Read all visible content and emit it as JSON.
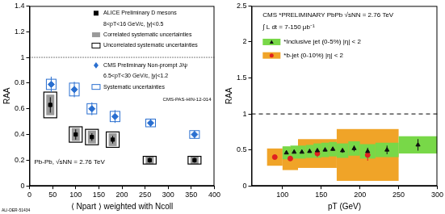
{
  "chart_data": [
    {
      "type": "scatter",
      "y_label": "RAA",
      "x_label": "⟨ Npart ⟩ weighted with Ncoll",
      "xlim": [
        0,
        400
      ],
      "xticks": [
        0,
        50,
        100,
        150,
        200,
        250,
        300,
        350,
        400
      ],
      "ylim": [
        0,
        1.4
      ],
      "yticks": [
        0,
        0.2,
        0.4,
        0.6,
        0.8,
        1,
        1.2,
        1.4
      ],
      "reference_line": {
        "value": 1,
        "line_style": "dotted"
      },
      "annotations": [
        "Pb-Pb, √sNN = 2.76 TeV",
        "CMS-PAS-HIN-12-014",
        "ALI-DER-51434"
      ],
      "series": [
        {
          "name": "ALICE Preliminary D mesons",
          "subtitle": "8<pT<16 GeV/c, |y|<0.5",
          "color": "#000000",
          "marker": "square",
          "x": [
            45,
            100,
            135,
            180,
            260,
            357
          ],
          "values": [
            0.63,
            0.4,
            0.38,
            0.36,
            0.2,
            0.2
          ],
          "errors": [
            0.06,
            0.04,
            0.03,
            0.03,
            0.02,
            0.02
          ],
          "correlated_syst": [
            0.08,
            0.05,
            0.05,
            0.05,
            0.03,
            0.03
          ],
          "correlated_syst_label": "Correlated systematic uncertainties",
          "uncorrelated_syst": [
            0.1,
            0.06,
            0.06,
            0.06,
            0.03,
            0.03
          ],
          "uncorrelated_syst_label": "Uncorrelated systematic uncertainties"
        },
        {
          "name": "CMS Preliminary Non-prompt J/ψ",
          "subtitle": "6.5<pT<30 GeV/c, |y|<1.2",
          "color": "#2a6fd0",
          "marker": "diamond",
          "x": [
            47,
            97,
            135,
            185,
            262,
            357
          ],
          "values": [
            0.79,
            0.75,
            0.6,
            0.54,
            0.49,
            0.4
          ],
          "errors": [
            0.06,
            0.06,
            0.05,
            0.05,
            0.03,
            0.03
          ],
          "syst": [
            0.04,
            0.05,
            0.04,
            0.04,
            0.03,
            0.03
          ],
          "syst_label": "Systematic uncertainties"
        }
      ]
    },
    {
      "type": "scatter",
      "title": "CMS *PRELIMINARY PbPb √sNN = 2.76 TeV",
      "y_label": "RAA",
      "x_label": "pT (GeV)",
      "xlim": [
        60,
        300
      ],
      "xticks": [
        100,
        150,
        200,
        250,
        300
      ],
      "ylim": [
        0,
        2.5
      ],
      "yticks": [
        0,
        0.5,
        1,
        1.5,
        2,
        2.5
      ],
      "reference_line": {
        "value": 1,
        "line_style": "dashed"
      },
      "annotations": [
        "∫ L dt = 7-150 μb⁻¹"
      ],
      "series": [
        {
          "name": "*Inclusive jet (0-5%) |η| < 2",
          "color": "#78d848",
          "marker": "triangle",
          "bins": [
            100,
            110,
            120,
            130,
            140,
            150,
            160,
            170,
            185,
            200,
            220,
            250,
            300
          ],
          "x": [
            105,
            115,
            125,
            135,
            145,
            155,
            165,
            177.5,
            192.5,
            210,
            235,
            275
          ],
          "values": [
            0.46,
            0.47,
            0.47,
            0.48,
            0.49,
            0.5,
            0.51,
            0.49,
            0.52,
            0.48,
            0.5,
            0.57
          ],
          "errors": [
            0.01,
            0.01,
            0.01,
            0.01,
            0.02,
            0.02,
            0.02,
            0.03,
            0.04,
            0.05,
            0.06,
            0.08
          ],
          "syst": [
            0.09,
            0.09,
            0.09,
            0.09,
            0.1,
            0.1,
            0.1,
            0.1,
            0.1,
            0.1,
            0.1,
            0.12
          ]
        },
        {
          "name": "*b-jet (0-10%) |η| < 2",
          "color": "#f0a428",
          "marker": "circle",
          "bins": [
            80,
            100,
            120,
            170,
            250
          ],
          "x": [
            90,
            110,
            145,
            210
          ],
          "values": [
            0.4,
            0.38,
            0.45,
            0.43
          ],
          "errors": [
            0.02,
            0.03,
            0.05,
            0.08
          ],
          "syst": [
            0.12,
            0.16,
            0.2,
            0.36
          ]
        }
      ]
    }
  ]
}
